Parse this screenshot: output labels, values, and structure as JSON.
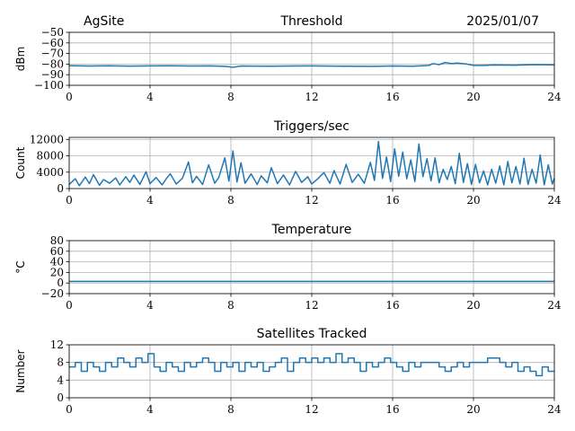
{
  "header": {
    "site": "AgSite",
    "date": "2025/01/07"
  },
  "colors": {
    "line": "#1f77b4",
    "grid": "#b0b0b0",
    "axis": "#000000"
  },
  "chart_data": [
    {
      "id": "threshold",
      "type": "line",
      "title": "Threshold",
      "ylabel": "dBm",
      "xlabel": "",
      "xlim": [
        0,
        24
      ],
      "ylim": [
        -100,
        -50
      ],
      "xticks": [
        0,
        4,
        8,
        12,
        16,
        20,
        24
      ],
      "yticks": [
        -100,
        -90,
        -80,
        -70,
        -60,
        -50
      ],
      "ytick_labels": [
        "−100",
        "−90",
        "−80",
        "−70",
        "−60",
        "−50"
      ],
      "grid": true,
      "series": [
        {
          "x": [
            0,
            1,
            2,
            3,
            4,
            5,
            6,
            7,
            7.8,
            8.1,
            8.5,
            9,
            10,
            11,
            12,
            13,
            14,
            15,
            16,
            17,
            17.8,
            18,
            18.3,
            18.6,
            18.9,
            19.2,
            19.6,
            20,
            20.5,
            21,
            22,
            23,
            24
          ],
          "y": [
            -81.5,
            -81.8,
            -81.6,
            -81.9,
            -81.7,
            -81.6,
            -81.8,
            -81.7,
            -82.2,
            -83,
            -81.8,
            -81.9,
            -82,
            -81.8,
            -81.7,
            -81.9,
            -82,
            -82.1,
            -81.8,
            -82,
            -81.2,
            -79.5,
            -80.5,
            -78.5,
            -79.5,
            -79,
            -79.8,
            -81.2,
            -81.3,
            -80.8,
            -81,
            -80.5,
            -80.7
          ]
        }
      ]
    },
    {
      "id": "triggers",
      "type": "line",
      "title": "Triggers/sec",
      "ylabel": "Count",
      "xlabel": "",
      "xlim": [
        0,
        24
      ],
      "ylim": [
        0,
        12500
      ],
      "xticks": [
        0,
        4,
        8,
        12,
        16,
        20,
        24
      ],
      "yticks": [
        0,
        4000,
        8000,
        12000
      ],
      "grid": true,
      "series": [
        {
          "x": [
            0,
            0.3,
            0.5,
            0.8,
            1,
            1.2,
            1.5,
            1.7,
            2,
            2.3,
            2.5,
            2.8,
            3,
            3.2,
            3.5,
            3.8,
            4,
            4.3,
            4.6,
            4.8,
            5,
            5.3,
            5.6,
            5.9,
            6.1,
            6.3,
            6.6,
            6.9,
            7.2,
            7.4,
            7.7,
            7.9,
            8.1,
            8.3,
            8.5,
            8.7,
            9,
            9.3,
            9.5,
            9.8,
            10,
            10.3,
            10.6,
            10.9,
            11.2,
            11.5,
            11.8,
            12,
            12.3,
            12.6,
            12.9,
            13.1,
            13.4,
            13.7,
            14,
            14.3,
            14.6,
            14.9,
            15.1,
            15.3,
            15.5,
            15.7,
            15.9,
            16.1,
            16.3,
            16.5,
            16.7,
            16.9,
            17.1,
            17.3,
            17.5,
            17.7,
            17.9,
            18.1,
            18.3,
            18.5,
            18.7,
            18.9,
            19.1,
            19.3,
            19.5,
            19.7,
            19.9,
            20.1,
            20.3,
            20.5,
            20.7,
            20.9,
            21.1,
            21.3,
            21.5,
            21.7,
            21.9,
            22.1,
            22.3,
            22.5,
            22.7,
            22.9,
            23.1,
            23.3,
            23.5,
            23.7,
            23.9,
            24
          ],
          "y": [
            1000,
            2400,
            700,
            2800,
            1200,
            3400,
            800,
            2200,
            1300,
            2600,
            900,
            2900,
            1500,
            3300,
            1000,
            4100,
            1200,
            2700,
            900,
            2400,
            3600,
            1100,
            2500,
            6500,
            1400,
            3000,
            1000,
            5800,
            1300,
            2700,
            7500,
            1800,
            9200,
            1600,
            6300,
            1300,
            3600,
            1000,
            3100,
            1400,
            5100,
            1200,
            3300,
            900,
            4200,
            1500,
            2900,
            1100,
            2400,
            3900,
            1300,
            4400,
            1100,
            5900,
            1500,
            3500,
            1300,
            6400,
            2000,
            11500,
            2500,
            7700,
            1700,
            9700,
            3000,
            8900,
            2400,
            7000,
            1700,
            10900,
            2900,
            7300,
            1900,
            7500,
            1400,
            4700,
            2200,
            5400,
            1200,
            8600,
            1500,
            6100,
            1000,
            5900,
            1400,
            4300,
            900,
            4700,
            1300,
            5500,
            900,
            6600,
            1400,
            5400,
            1100,
            7400,
            1000,
            4700,
            1300,
            8200,
            900,
            5800,
            1100,
            2500
          ]
        }
      ]
    },
    {
      "id": "temperature",
      "type": "line",
      "title": "Temperature",
      "ylabel": "°C",
      "xlabel": "",
      "xlim": [
        0,
        24
      ],
      "ylim": [
        -20,
        80
      ],
      "xticks": [
        0,
        4,
        8,
        12,
        16,
        20,
        24
      ],
      "yticks": [
        -20,
        0,
        20,
        40,
        60,
        80
      ],
      "ytick_labels": [
        "−20",
        "0",
        "20",
        "40",
        "60",
        "80"
      ],
      "grid": true,
      "series": [
        {
          "x": [
            0,
            4,
            8,
            12,
            16,
            20,
            24
          ],
          "y": [
            3,
            3,
            3,
            3,
            3,
            3,
            3
          ]
        }
      ]
    },
    {
      "id": "satellites",
      "type": "line",
      "title": "Satellites Tracked",
      "ylabel": "Number",
      "xlabel": "",
      "xlim": [
        0,
        24
      ],
      "ylim": [
        0,
        12
      ],
      "xticks": [
        0,
        4,
        8,
        12,
        16,
        20,
        24
      ],
      "yticks": [
        0,
        4,
        8,
        12
      ],
      "grid": true,
      "series": [
        {
          "step": true,
          "x": [
            0,
            0.3,
            0.6,
            0.9,
            1.2,
            1.5,
            1.8,
            2.1,
            2.4,
            2.7,
            3.0,
            3.3,
            3.6,
            3.9,
            4.2,
            4.5,
            4.8,
            5.1,
            5.4,
            5.7,
            6.0,
            6.3,
            6.6,
            6.9,
            7.2,
            7.5,
            7.8,
            8.1,
            8.4,
            8.7,
            9.0,
            9.3,
            9.6,
            9.9,
            10.2,
            10.5,
            10.8,
            11.1,
            11.4,
            11.7,
            12.0,
            12.3,
            12.6,
            12.9,
            13.2,
            13.5,
            13.8,
            14.1,
            14.4,
            14.7,
            15.0,
            15.3,
            15.6,
            15.9,
            16.2,
            16.5,
            16.8,
            17.1,
            17.4,
            17.7,
            18.0,
            18.3,
            18.6,
            18.9,
            19.2,
            19.5,
            19.8,
            20.1,
            20.4,
            20.7,
            21.0,
            21.3,
            21.6,
            21.9,
            22.2,
            22.5,
            22.8,
            23.1,
            23.4,
            23.7,
            24.0
          ],
          "y": [
            7,
            8,
            6,
            8,
            7,
            6,
            8,
            7,
            9,
            8,
            7,
            9,
            8,
            10,
            7,
            6,
            8,
            7,
            6,
            8,
            7,
            8,
            9,
            8,
            6,
            8,
            7,
            8,
            6,
            8,
            7,
            8,
            6,
            7,
            8,
            9,
            6,
            8,
            9,
            8,
            9,
            8,
            9,
            8,
            10,
            8,
            9,
            8,
            6,
            8,
            7,
            8,
            9,
            8,
            7,
            6,
            8,
            7,
            8,
            8,
            8,
            7,
            6,
            7,
            8,
            7,
            8,
            8,
            8,
            9,
            9,
            8,
            7,
            8,
            6,
            7,
            6,
            5,
            7,
            6,
            6
          ]
        }
      ]
    }
  ]
}
